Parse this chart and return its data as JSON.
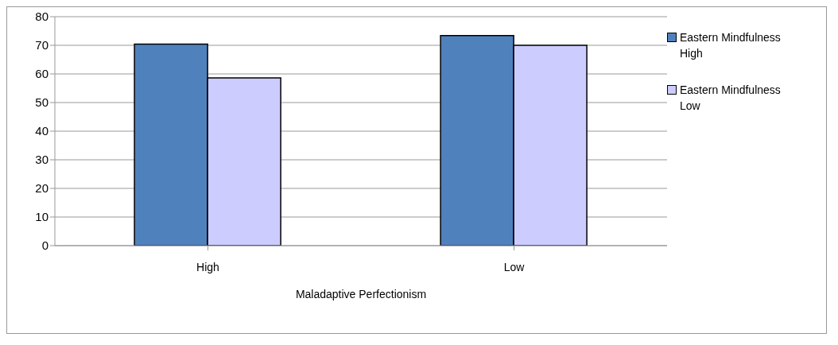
{
  "chart_data": {
    "type": "bar",
    "xlabel": "Maladaptive Perfectionism",
    "categories": [
      "High",
      "Low"
    ],
    "series": [
      {
        "name": "Eastern Mindfulness High",
        "color": "#4f81bd",
        "values": [
          70.4,
          73.4
        ]
      },
      {
        "name": "Eastern Mindfulness Low",
        "color": "#ccccff",
        "values": [
          58.6,
          70.0
        ]
      }
    ],
    "ylim": [
      0,
      80
    ],
    "yticks": [
      0,
      10,
      20,
      30,
      40,
      50,
      60,
      70,
      80
    ],
    "grid": "y",
    "legend": "right"
  }
}
